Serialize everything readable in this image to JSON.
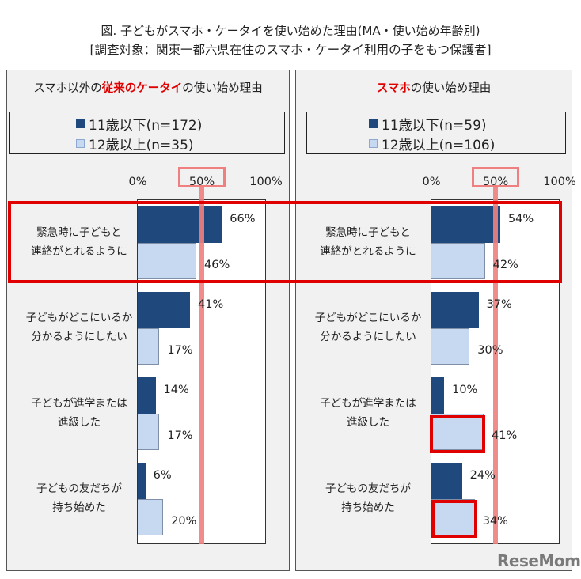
{
  "header": {
    "title_line1": "図. 子どもがスマホ・ケータイを使い始めた理由(MA・使い始め年齢別)",
    "title_line2": "[調査対象：関東一都六県在住のスマホ・ケータイ利用の子をもつ保護者]"
  },
  "colors": {
    "under11": "#1f497d",
    "over12": "#c6d9f1",
    "highlight_red": "#e00000",
    "fifty_line": "#f08080",
    "panel_bg": "#f1f1f1"
  },
  "panels": [
    {
      "title_pre": "スマホ以外の",
      "title_highlight": "従来のケータイ",
      "title_post": "の使い始め理由",
      "legend": [
        "11歳以下(n=172)",
        "12歳以上(n=35)"
      ],
      "ticks": [
        "0%",
        "50%",
        "100%"
      ]
    },
    {
      "title_pre": "",
      "title_highlight": "スマホ",
      "title_post": "の使い始め理由",
      "legend": [
        "11歳以下(n=59)",
        "12歳以上(n=106)"
      ],
      "ticks": [
        "0%",
        "50%",
        "100%"
      ]
    }
  ],
  "categories": [
    [
      "緊急時に子どもと",
      "連絡がとれるように"
    ],
    [
      "子どもがどこにいるか",
      "分かるようにしたい"
    ],
    [
      "子どもが進学または",
      "進級した"
    ],
    [
      "子どもの友だちが",
      "持ち始めた"
    ]
  ],
  "watermark": "ReseMom",
  "chart_data": [
    {
      "type": "bar",
      "orientation": "horizontal",
      "title": "スマホ以外の従来のケータイの使い始め理由",
      "categories": [
        "緊急時に子どもと連絡がとれるように",
        "子どもがどこにいるか分かるようにしたい",
        "子どもが進学または進級した",
        "子どもの友だちが持ち始めた"
      ],
      "series": [
        {
          "name": "11歳以下(n=172)",
          "values": [
            66,
            41,
            14,
            6
          ]
        },
        {
          "name": "12歳以上(n=35)",
          "values": [
            46,
            17,
            17,
            20
          ]
        }
      ],
      "value_labels": [
        [
          "66%",
          "41%",
          "14%",
          "6%"
        ],
        [
          "46%",
          "17%",
          "17%",
          "20%"
        ]
      ],
      "xlim": [
        0,
        100
      ],
      "xticks": [
        "0%",
        "50%",
        "100%"
      ],
      "reference_line": 50,
      "legend_position": "top"
    },
    {
      "type": "bar",
      "orientation": "horizontal",
      "title": "スマホの使い始め理由",
      "categories": [
        "緊急時に子どもと連絡がとれるように",
        "子どもがどこにいるか分かるようにしたい",
        "子どもが進学または進級した",
        "子どもの友だちが持ち始めた"
      ],
      "series": [
        {
          "name": "11歳以下(n=59)",
          "values": [
            54,
            37,
            10,
            24
          ]
        },
        {
          "name": "12歳以上(n=106)",
          "values": [
            42,
            30,
            41,
            34
          ]
        }
      ],
      "value_labels": [
        [
          "54%",
          "37%",
          "10%",
          "24%"
        ],
        [
          "42%",
          "30%",
          "41%",
          "34%"
        ]
      ],
      "xlim": [
        0,
        100
      ],
      "xticks": [
        "0%",
        "50%",
        "100%"
      ],
      "reference_line": 50,
      "legend_position": "top",
      "annotations": [
        "Red box around 緊急時 row across both panels",
        "Red boxes around 12歳以上 bars for 進学/進級 (41%) and 友だち (34%)"
      ]
    }
  ]
}
